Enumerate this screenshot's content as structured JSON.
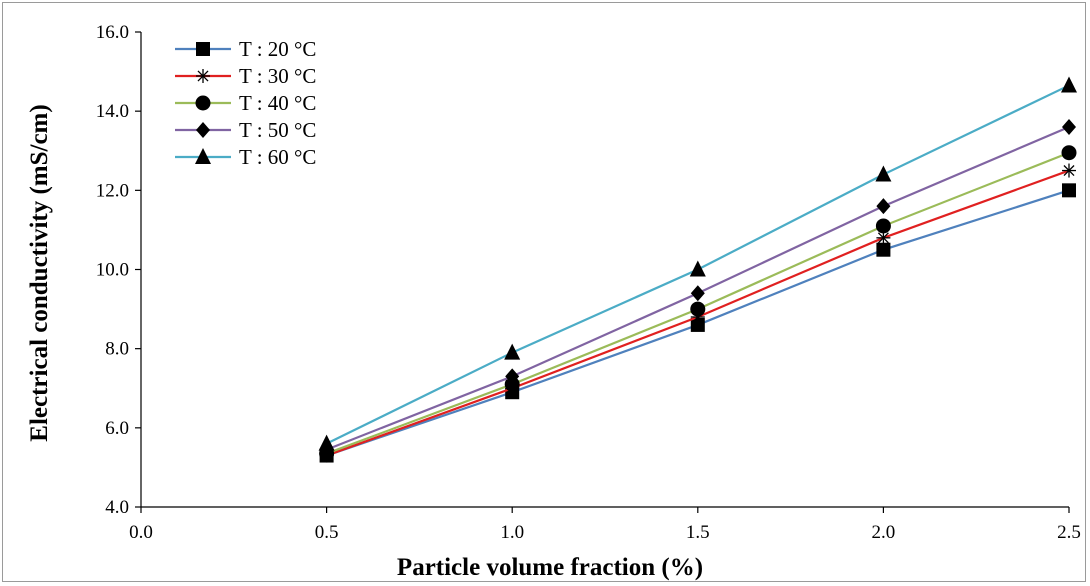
{
  "chart_data": {
    "type": "line",
    "title": "",
    "xlabel": "Particle volume fraction (%)",
    "ylabel": "Electrical conductivity (mS/cm)",
    "xlim": [
      0.0,
      2.5
    ],
    "ylim": [
      4.0,
      16.0
    ],
    "xticks": [
      "0.0",
      "0.5",
      "1.0",
      "1.5",
      "2.0",
      "2.5"
    ],
    "yticks": [
      "4.0",
      "6.0",
      "8.0",
      "10.0",
      "12.0",
      "14.0",
      "16.0"
    ],
    "grid": false,
    "legend_position": "top-left",
    "x": [
      0.5,
      1.0,
      1.5,
      2.0,
      2.5
    ],
    "series": [
      {
        "name": "T : 20 °C",
        "marker": "square",
        "color": "#4f81bd",
        "values": [
          5.3,
          6.9,
          8.6,
          10.5,
          12.0
        ]
      },
      {
        "name": "T : 30 °C",
        "marker": "star",
        "color": "#e02020",
        "values": [
          5.3,
          7.0,
          8.8,
          10.8,
          12.5
        ]
      },
      {
        "name": "T : 40 °C",
        "marker": "circle",
        "color": "#9bbb59",
        "values": [
          5.35,
          7.1,
          9.0,
          11.1,
          12.95
        ]
      },
      {
        "name": "T : 50 °C",
        "marker": "diamond",
        "color": "#8064a2",
        "values": [
          5.45,
          7.3,
          9.4,
          11.6,
          13.6
        ]
      },
      {
        "name": "T : 60 °C",
        "marker": "triangle",
        "color": "#4bacc6",
        "values": [
          5.6,
          7.9,
          10.0,
          12.4,
          14.65
        ]
      }
    ]
  }
}
